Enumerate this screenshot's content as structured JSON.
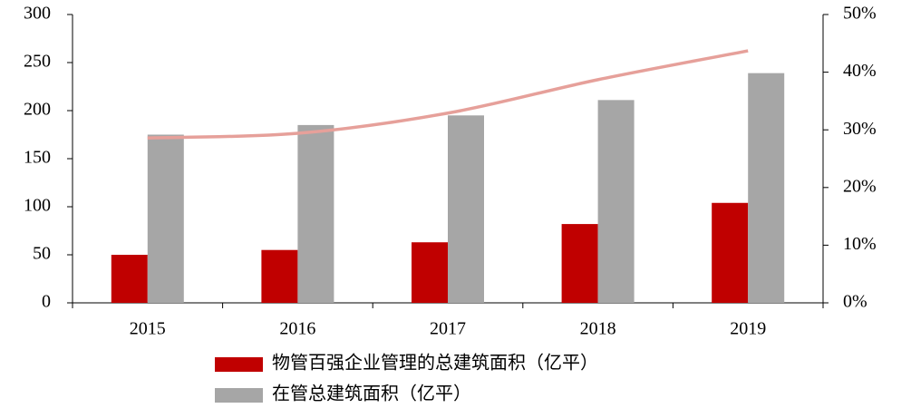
{
  "chart_data": {
    "type": "bar",
    "categories": [
      "2015",
      "2016",
      "2017",
      "2018",
      "2019"
    ],
    "series": [
      {
        "name": "物管百强企业管理的总建筑面积（亿平）",
        "color": "#c00000",
        "values": [
          50,
          55,
          63,
          82,
          104
        ]
      },
      {
        "name": "在管总建筑面积（亿平）",
        "color": "#a6a6a6",
        "values": [
          175,
          185,
          195,
          211,
          239
        ]
      },
      {
        "type": "line",
        "axis": "y2",
        "color": "#e6a09a",
        "values": [
          28.6,
          29.4,
          32.9,
          38.7,
          43.7
        ]
      }
    ],
    "ylim": [
      0,
      300
    ],
    "yticks": [
      0,
      50,
      100,
      150,
      200,
      250,
      300
    ],
    "y2lim": [
      0,
      50
    ],
    "y2ticks": [
      {
        "value": 0,
        "label": "0%"
      },
      {
        "value": 10,
        "label": "10%"
      },
      {
        "value": 20,
        "label": "20%"
      },
      {
        "value": 30,
        "label": "30%"
      },
      {
        "value": 40,
        "label": "40%"
      },
      {
        "value": 50,
        "label": "50%"
      }
    ]
  }
}
